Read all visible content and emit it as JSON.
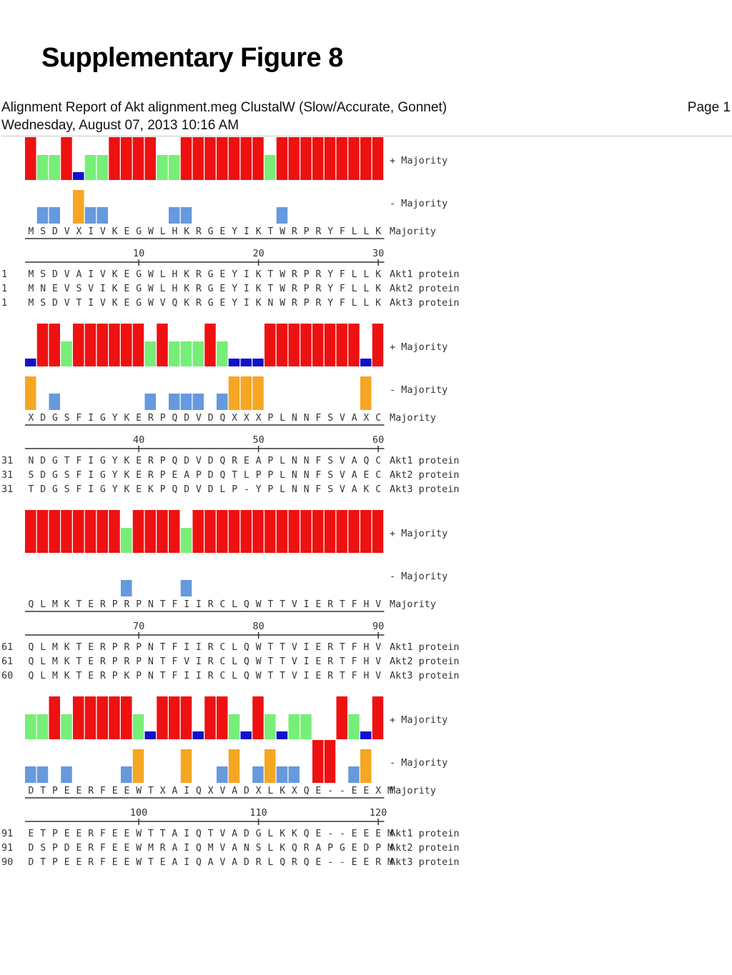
{
  "figure_title": "Supplementary Figure 8",
  "report": {
    "title": "Alignment Report of Akt alignment.meg ClustalW (Slow/Accurate, Gonnet)",
    "date": "Wednesday, August 07, 2013  10:16 AM",
    "page": "Page 1"
  },
  "legend": {
    "plus_majority": "+ Majority",
    "minus_majority": "- Majority",
    "majority": "Majority"
  },
  "colors": {
    "red": "#ee1111",
    "green": "#77ee77",
    "navy": "#1111cc",
    "blue": "#6699dd",
    "orange": "#f5a623"
  },
  "blocks": [
    {
      "majority": "MSDVXIVKEGWLHKRGEYIKTWRPRYFLLK",
      "ruler": [
        10,
        20,
        30
      ],
      "plus": "RGGRNGGRRRRGGRRRRRRRGRRRRRRRRR",
      "minus": "0BB0OBB00000BB0000000B000000000",
      "rows": [
        {
          "start": "1",
          "seq": "MSDVAIVKEGWLHKRGEYIKTWRPRYFLLK",
          "name": "Akt1 protein"
        },
        {
          "start": "1",
          "seq": "MNEVSVIKEGWLHKRGEYIKTWRPRYFLLK",
          "name": "Akt2 protein"
        },
        {
          "start": "1",
          "seq": "MSDVTIVKEGWVQKRGEYIKNWRPRYFLLK",
          "name": "Akt3 protein"
        }
      ]
    },
    {
      "majority": "XDGSFIGYKERPQDVDQXXXPLNNFSVAXC",
      "ruler": [
        40,
        50,
        60
      ],
      "plus": "NRRGRRRRRRGRGGGRGNNNRRRRRRRRNR",
      "minus": "O0B0000000B0BBB0BOOO00000000O0",
      "rows": [
        {
          "start": "31",
          "seq": "NDGTFIGYKERPQDVDQREAPLNNFSVAQC",
          "name": "Akt1 protein"
        },
        {
          "start": "31",
          "seq": "SDGSFIGYKERPEAPDQTLPPLNNFSVAEC",
          "name": "Akt2 protein"
        },
        {
          "start": "31",
          "seq": "TDGSFIGYKEKPQDVDLP-YPLNNFSVAKC",
          "name": "Akt3 protein"
        }
      ]
    },
    {
      "majority": "QLMKTERPRPNTFIIRCLQWTTVIERTFHV",
      "ruler": [
        70,
        80,
        90
      ],
      "plus": "RRRRRRRRGRRRRGRRRRRRRRRRRRRRRR",
      "minus": "00000000B0000B0000000000000000",
      "rows": [
        {
          "start": "61",
          "seq": "QLMKTERPRPNTFIIRCLQWTTVIERTFHV",
          "name": "Akt1 protein"
        },
        {
          "start": "61",
          "seq": "QLMKTERPRPNTFVIRCLQWTTVIERTFHV",
          "name": "Akt2 protein"
        },
        {
          "start": "60",
          "seq": "QLMKTERPKPNTFIIRCLQWTTVIERTFHV",
          "name": "Akt3 protein"
        }
      ]
    },
    {
      "majority": "DTPEERFEEWTXAIQXVADXLKXQE--EEXM",
      "ruler": [
        100,
        110,
        120
      ],
      "plus": "GGRGRRRRRGNRRRNRRGNRGNGG00RGNR",
      "minus": "BB0B0000BO000O00BO0BOBB0RR0BO0",
      "rows": [
        {
          "start": "91",
          "seq": "ETPEERFEEWTTAIQTVADGLKKQE--EEEM",
          "name": "Akt1 protein"
        },
        {
          "start": "91",
          "seq": "DSPDERFEEWMRAIQMVANSLKQRAPGEDPM",
          "name": "Akt2 protein"
        },
        {
          "start": "90",
          "seq": "DTPEERFEEWTEAIQAVADRLQRQE--EERM",
          "name": "Akt3 protein"
        }
      ]
    }
  ]
}
